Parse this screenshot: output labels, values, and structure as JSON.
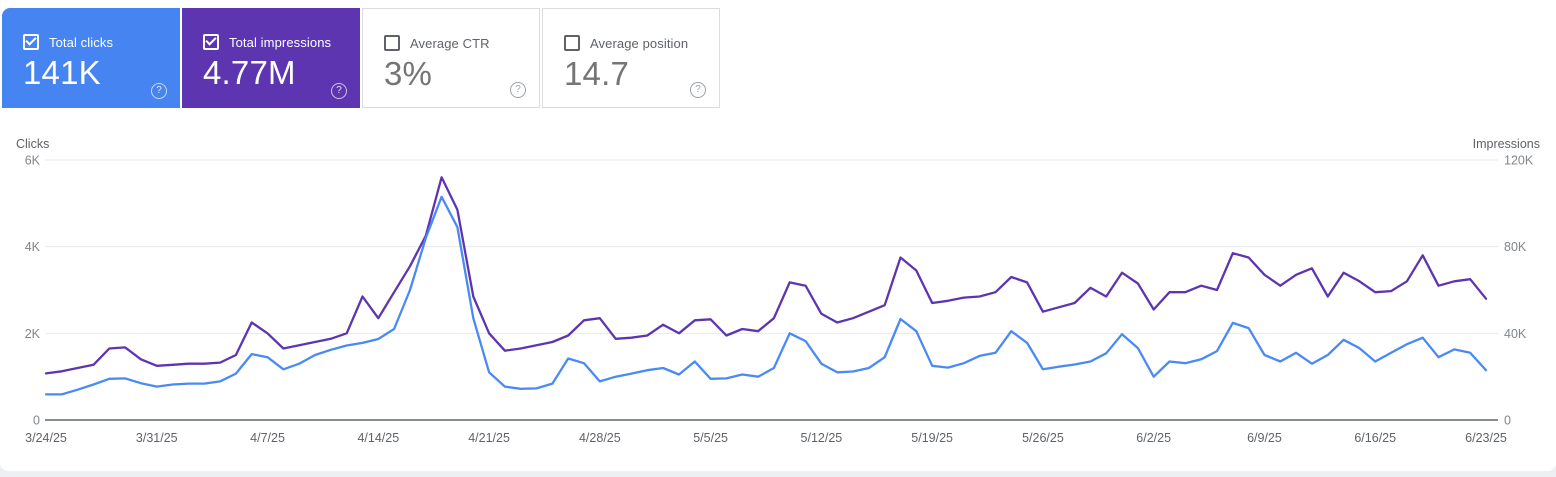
{
  "icons": {
    "help": "?"
  },
  "colors": {
    "clicks_accent": "#4684f2",
    "impressions_accent": "#5e35b1",
    "clicks_line": "#4a8af5",
    "impressions_line": "#5e35b1",
    "gridline": "#e8eaed",
    "axis_line": "#878c91",
    "tick_text": "#80868b",
    "title_text": "#5f6368"
  },
  "cards": [
    {
      "label": "Total clicks",
      "value": "141K",
      "checked": true,
      "bg": "#4684f2"
    },
    {
      "label": "Total impressions",
      "value": "4.77M",
      "checked": true,
      "bg": "#5e35b1"
    },
    {
      "label": "Average CTR",
      "value": "3%",
      "checked": false,
      "bg": "#ffffff"
    },
    {
      "label": "Average position",
      "value": "14.7",
      "checked": false,
      "bg": "#ffffff"
    }
  ],
  "chart_data": {
    "type": "line",
    "granularity": "daily",
    "grid": true,
    "x_labels": [
      "3/24/25",
      "3/31/25",
      "4/7/25",
      "4/14/25",
      "4/21/25",
      "4/28/25",
      "5/5/25",
      "5/12/25",
      "5/19/25",
      "5/26/25",
      "6/2/25",
      "6/9/25",
      "6/16/25",
      "6/23/25"
    ],
    "left_axis": {
      "title": "Clicks",
      "ticks": [
        "6K",
        "4K",
        "2K",
        "0"
      ],
      "max": 6000
    },
    "right_axis": {
      "title": "Impressions",
      "ticks": [
        "120K",
        "80K",
        "40K",
        "0"
      ],
      "max": 120000
    },
    "series": [
      {
        "name": "Impressions",
        "axis": "right",
        "color": "#5e35b1",
        "values": [
          21500,
          22500,
          24000,
          25500,
          33000,
          33500,
          28000,
          25000,
          25500,
          26000,
          26000,
          26500,
          30000,
          45000,
          40000,
          33000,
          34500,
          36000,
          37500,
          40000,
          57000,
          47000,
          59000,
          71000,
          85000,
          112000,
          97000,
          57000,
          40000,
          32000,
          33000,
          34500,
          36000,
          39000,
          46000,
          47000,
          37500,
          38000,
          39000,
          44000,
          40000,
          46000,
          46500,
          39000,
          42000,
          41000,
          47000,
          63500,
          62000,
          49000,
          45000,
          47000,
          50000,
          53000,
          75000,
          69000,
          54000,
          55000,
          56500,
          57000,
          59000,
          66000,
          63500,
          50000,
          52000,
          54000,
          61000,
          57000,
          68000,
          63000,
          51000,
          59000,
          59000,
          62000,
          60000,
          77000,
          75000,
          67000,
          62000,
          67000,
          70000,
          57000,
          68000,
          64000,
          59000,
          59500,
          64000,
          76000,
          62000,
          64000,
          65000,
          56000
        ]
      },
      {
        "name": "Clicks",
        "axis": "left",
        "color": "#4a8af5",
        "values": [
          590,
          590,
          700,
          820,
          950,
          960,
          850,
          770,
          820,
          840,
          840,
          890,
          1070,
          1520,
          1450,
          1170,
          1300,
          1500,
          1620,
          1720,
          1780,
          1870,
          2100,
          3000,
          4200,
          5150,
          4450,
          2350,
          1100,
          770,
          720,
          730,
          840,
          1420,
          1310,
          890,
          1000,
          1070,
          1150,
          1200,
          1050,
          1350,
          950,
          960,
          1050,
          1000,
          1200,
          2000,
          1820,
          1300,
          1100,
          1120,
          1200,
          1450,
          2330,
          2050,
          1250,
          1210,
          1310,
          1480,
          1550,
          2050,
          1780,
          1170,
          1230,
          1280,
          1350,
          1540,
          1980,
          1660,
          1000,
          1350,
          1310,
          1400,
          1590,
          2240,
          2120,
          1500,
          1350,
          1550,
          1300,
          1500,
          1850,
          1660,
          1350,
          1550,
          1750,
          1900,
          1450,
          1630,
          1550,
          1150
        ]
      }
    ]
  }
}
